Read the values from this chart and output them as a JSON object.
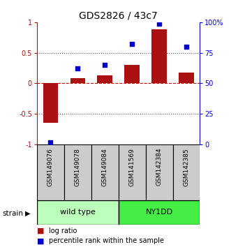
{
  "title": "GDS2826 / 43c7",
  "samples": [
    "GSM149076",
    "GSM149078",
    "GSM149084",
    "GSM141569",
    "GSM142384",
    "GSM142385"
  ],
  "groups": [
    "wild type",
    "wild type",
    "wild type",
    "NY1DD",
    "NY1DD",
    "NY1DD"
  ],
  "log_ratio": [
    -0.65,
    0.08,
    0.13,
    0.3,
    0.88,
    0.18
  ],
  "percentile_rank": [
    2,
    62,
    65,
    82,
    99,
    80
  ],
  "bar_color": "#AA1111",
  "dot_color": "#0000CC",
  "ylim_left": [
    -1.0,
    1.0
  ],
  "ylim_right": [
    0,
    100
  ],
  "hline_zero_color": "#CC0000",
  "hline_dotted_color": "#555555",
  "group_colors": {
    "wild type": "#BBFFBB",
    "NY1DD": "#44EE44"
  },
  "sample_cell_color": "#CCCCCC",
  "strain_label": "strain",
  "legend_items": [
    {
      "label": "log ratio",
      "color": "#AA1111"
    },
    {
      "label": "percentile rank within the sample",
      "color": "#0000CC"
    }
  ],
  "tick_left": [
    -1,
    -0.5,
    0,
    0.5,
    1
  ],
  "tick_right": [
    0,
    25,
    50,
    75,
    100
  ],
  "tick_right_labels": [
    "0",
    "25",
    "50",
    "75",
    "100%"
  ]
}
